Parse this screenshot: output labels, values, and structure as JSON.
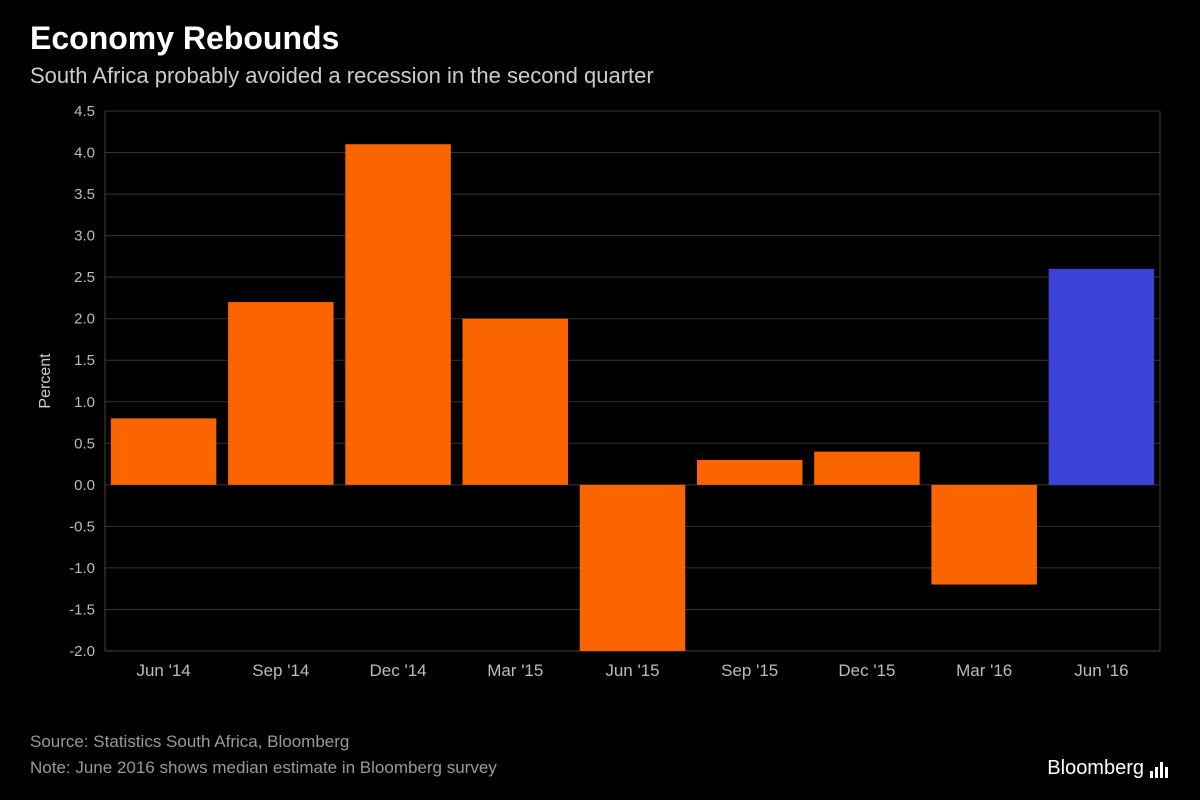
{
  "title": "Economy Rebounds",
  "subtitle": "South Africa probably avoided a recession in the second quarter",
  "chart": {
    "type": "bar",
    "ylabel": "Percent",
    "ylim": [
      -2.0,
      4.5
    ],
    "ytick_step": 0.5,
    "yticks": [
      -2.0,
      -1.5,
      -1.0,
      -0.5,
      0.0,
      0.5,
      1.0,
      1.5,
      2.0,
      2.5,
      3.0,
      3.5,
      4.0,
      4.5
    ],
    "categories": [
      "Jun '14",
      "Sep '14",
      "Dec '14",
      "Mar '15",
      "Jun '15",
      "Sep '15",
      "Dec '15",
      "Mar '16",
      "Jun '16"
    ],
    "values": [
      0.8,
      2.2,
      4.1,
      2.0,
      -2.0,
      0.3,
      0.4,
      -1.2,
      2.6
    ],
    "bar_colors": [
      "#fb6500",
      "#fb6500",
      "#fb6500",
      "#fb6500",
      "#fb6500",
      "#fb6500",
      "#fb6500",
      "#fb6500",
      "#3c42d6"
    ],
    "background_color": "#000000",
    "grid_color": "#333333",
    "text_color": "#bbbbbb",
    "bar_width": 0.9,
    "title_fontsize": 32,
    "subtitle_fontsize": 22,
    "label_fontsize": 17
  },
  "source": "Source: Statistics South Africa, Bloomberg",
  "note": "Note: June 2016 shows median estimate in Bloomberg survey",
  "brand": "Bloomberg"
}
